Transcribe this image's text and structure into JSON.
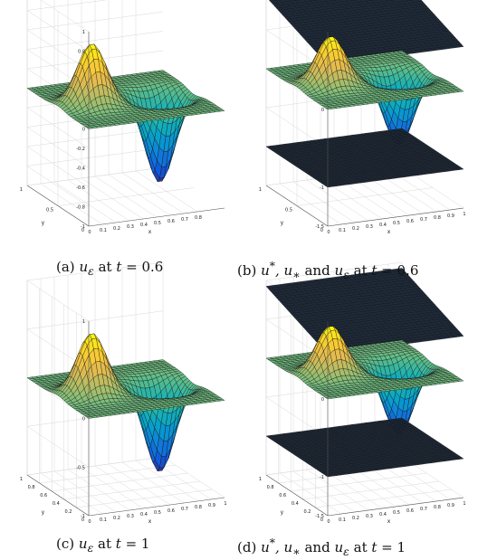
{
  "captions": {
    "a": {
      "label": "(a)",
      "var": "u",
      "sub": "ε",
      "rest": " at ",
      "t": "t",
      "eq": " = 0.6"
    },
    "b": {
      "label": "(b)",
      "text1": "u",
      "s1": "*",
      "text2": ", u",
      "s2": "∗",
      "text3": " and ",
      "var": "u",
      "sub": "ε",
      "rest": " at ",
      "t": "t",
      "eq": " = 0.6"
    },
    "c": {
      "label": "(c)",
      "var": "u",
      "sub": "ε",
      "rest": " at ",
      "t": "t",
      "eq": " = 1"
    },
    "d": {
      "label": "(d)",
      "text1": "u",
      "s1": "*",
      "text2": ", u",
      "s2": "∗",
      "text3": " and ",
      "var": "u",
      "sub": "ε",
      "rest": " at ",
      "t": "t",
      "eq": " = 1"
    }
  },
  "chart_data": [
    {
      "id": "a",
      "type": "surface3d",
      "xlabel": "x",
      "ylabel": "y",
      "zlabel": "",
      "xlim": [
        0,
        1
      ],
      "ylim": [
        0,
        1
      ],
      "zlim": [
        -1,
        1
      ],
      "xticks": [
        "0",
        "0.1",
        "0.2",
        "0.3",
        "0.4",
        "0.5",
        "0.6",
        "0.7",
        "0.8"
      ],
      "yticks": [
        "0",
        "0.5",
        "1"
      ],
      "zticks": [
        "1",
        "0.8",
        "0.6",
        "0.4",
        "0.2",
        "0",
        "-0.2",
        "-0.4",
        "-0.6",
        "-0.8",
        "-1"
      ],
      "surfaces": [
        {
          "kind": "bump",
          "peak": 0.62,
          "trough": -0.9,
          "peak_at": [
            0.25,
            0.5
          ],
          "trough_at": [
            0.75,
            0.5
          ],
          "colormap": "parula"
        }
      ]
    },
    {
      "id": "b",
      "type": "surface3d",
      "xlabel": "x",
      "ylabel": "y",
      "zlabel": "",
      "xlim": [
        0,
        1
      ],
      "ylim": [
        0,
        1
      ],
      "zlim": [
        -1.5,
        1
      ],
      "xticks": [
        "0",
        "0.1",
        "0.2",
        "0.3",
        "0.4",
        "0.5",
        "0.6",
        "0.7",
        "0.8",
        "0.9",
        "1"
      ],
      "yticks": [
        "0",
        "0.5",
        "1"
      ],
      "zticks": [
        "1",
        "0.5",
        "0",
        "-0.5",
        "-1",
        "-1.5"
      ],
      "surfaces": [
        {
          "kind": "plane",
          "level": 0.75,
          "tilt": 0.35
        },
        {
          "kind": "bump",
          "peak": 0.62,
          "trough": -0.9,
          "peak_at": [
            0.25,
            0.5
          ],
          "trough_at": [
            0.75,
            0.5
          ],
          "colormap": "parula"
        },
        {
          "kind": "plane",
          "level": -1.0,
          "tilt": 0
        }
      ]
    },
    {
      "id": "c",
      "type": "surface3d",
      "xlabel": "x",
      "ylabel": "y",
      "zlabel": "",
      "xlim": [
        0,
        1
      ],
      "ylim": [
        0,
        1
      ],
      "zlim": [
        -1,
        1
      ],
      "xticks": [
        "0",
        "0.1",
        "0.2",
        "0.3",
        "0.4",
        "0.5",
        "0.6",
        "0.7",
        "0.8",
        "0.9",
        "1"
      ],
      "yticks": [
        "0",
        "0.2",
        "0.4",
        "0.6",
        "0.8",
        "1"
      ],
      "zticks": [
        "1",
        "0.5",
        "0",
        "-0.5",
        "-1"
      ],
      "surfaces": [
        {
          "kind": "bump",
          "peak": 0.62,
          "trough": -0.9,
          "peak_at": [
            0.25,
            0.5
          ],
          "trough_at": [
            0.75,
            0.5
          ],
          "colormap": "parula"
        }
      ]
    },
    {
      "id": "d",
      "type": "surface3d",
      "xlabel": "x",
      "ylabel": "y",
      "zlabel": "",
      "xlim": [
        0,
        1
      ],
      "ylim": [
        0,
        1
      ],
      "zlim": [
        -1.5,
        1
      ],
      "xticks": [
        "0",
        "0.1",
        "0.2",
        "0.3",
        "0.4",
        "0.5",
        "0.6",
        "0.7",
        "0.8",
        "0.9",
        "1"
      ],
      "yticks": [
        "0",
        "0.2",
        "0.4",
        "0.6",
        "0.8",
        "1"
      ],
      "zticks": [
        "1",
        "0.5",
        "0",
        "-0.5",
        "-1",
        "-1.5"
      ],
      "surfaces": [
        {
          "kind": "plane",
          "level": 0.75,
          "tilt": 0.35
        },
        {
          "kind": "bump",
          "peak": 0.62,
          "trough": -0.9,
          "peak_at": [
            0.25,
            0.5
          ],
          "trough_at": [
            0.75,
            0.5
          ],
          "colormap": "parula"
        },
        {
          "kind": "plane",
          "level": -1.0,
          "tilt": 0
        }
      ]
    }
  ]
}
